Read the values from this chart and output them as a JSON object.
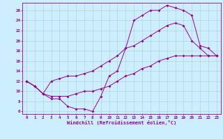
{
  "xlabel": "Windchill (Refroidissement éolien,°C)",
  "bg_color": "#cceeff",
  "line_color": "#990099",
  "grid_color": "#aacccc",
  "xlim": [
    -0.5,
    23.5
  ],
  "ylim": [
    5.5,
    27.5
  ],
  "yticks": [
    6,
    8,
    10,
    12,
    14,
    16,
    18,
    20,
    22,
    24,
    26
  ],
  "xticks": [
    0,
    1,
    2,
    3,
    4,
    5,
    6,
    7,
    8,
    9,
    10,
    11,
    12,
    13,
    14,
    15,
    16,
    17,
    18,
    19,
    20,
    21,
    22,
    23
  ],
  "line1_x": [
    0,
    1,
    2,
    3,
    4,
    5,
    6,
    7,
    8,
    9,
    10,
    11,
    12,
    13,
    14,
    15,
    16,
    17,
    18,
    19,
    20,
    21,
    22,
    23
  ],
  "line1_y": [
    12,
    11,
    9.5,
    8.5,
    8.5,
    7,
    6.5,
    6.5,
    6,
    9,
    13,
    14,
    18.5,
    24,
    25,
    26,
    26,
    27,
    26.5,
    26,
    25,
    19,
    18.5,
    17
  ],
  "line2_x": [
    0,
    1,
    2,
    3,
    4,
    5,
    6,
    7,
    8,
    9,
    10,
    11,
    12,
    13,
    14,
    15,
    16,
    17,
    18,
    19,
    20,
    21,
    22,
    23
  ],
  "line2_y": [
    12,
    11,
    9.5,
    12,
    12.5,
    13,
    13,
    13.5,
    14,
    15,
    16,
    17,
    18.5,
    19,
    20,
    21,
    22,
    23,
    23.5,
    23,
    20,
    18.5,
    17,
    17
  ],
  "line3_x": [
    0,
    1,
    2,
    3,
    4,
    5,
    6,
    7,
    8,
    9,
    10,
    11,
    12,
    13,
    14,
    15,
    16,
    17,
    18,
    19,
    20,
    21,
    22,
    23
  ],
  "line3_y": [
    12,
    11,
    9.5,
    9,
    9,
    9,
    9.5,
    10,
    10,
    10.5,
    11,
    12,
    13,
    13.5,
    14.5,
    15,
    16,
    16.5,
    17,
    17,
    17,
    17,
    17,
    17
  ]
}
